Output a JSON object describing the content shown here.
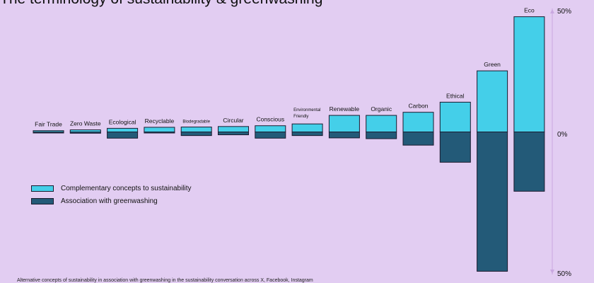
{
  "title": "The terminology of sustainability & greenwashing",
  "footnote": "Alternative concepts of sustainability in association with greenwashing in the sustainability conversation across X, Facebook, Instagram",
  "colors": {
    "background": "#e2cdf2",
    "complementary": "#44cfe9",
    "greenwashing": "#235a78",
    "outline": "#1a1a2e",
    "axis": "#c9a8e0"
  },
  "chart_data": {
    "type": "bar",
    "title": "The terminology of sustainability & greenwashing",
    "categories": [
      "Fair Trade",
      "Zero Waste",
      "Ecological",
      "Recyclable",
      "Biodegradable",
      "Circular",
      "Conscious",
      "Environmental Friendly",
      "Renewable",
      "Organic",
      "Carbon",
      "Ethical",
      "Green",
      "Eco"
    ],
    "series": [
      {
        "name": "Complementary concepts to sustainability",
        "values": [
          0.5,
          0.8,
          1.4,
          1.8,
          1.9,
          2.1,
          2.4,
          3.1,
          6.4,
          6.4,
          7.6,
          11.5,
          23.6,
          44.5
        ]
      },
      {
        "name": "Association with greenwashing",
        "values": [
          -0.3,
          -0.5,
          -2.4,
          -0.1,
          -1.4,
          -1.1,
          -2.4,
          -1.4,
          -2.3,
          -2.6,
          -5.1,
          -11.7,
          -53.8,
          -22.9
        ]
      }
    ],
    "ylim": [
      -55,
      50
    ],
    "yticks": [
      {
        "value": 50,
        "label": "50%"
      },
      {
        "value": 0,
        "label": "0%"
      },
      {
        "value": -50,
        "label": "50%"
      }
    ],
    "legend_position": "left",
    "grid": false
  }
}
